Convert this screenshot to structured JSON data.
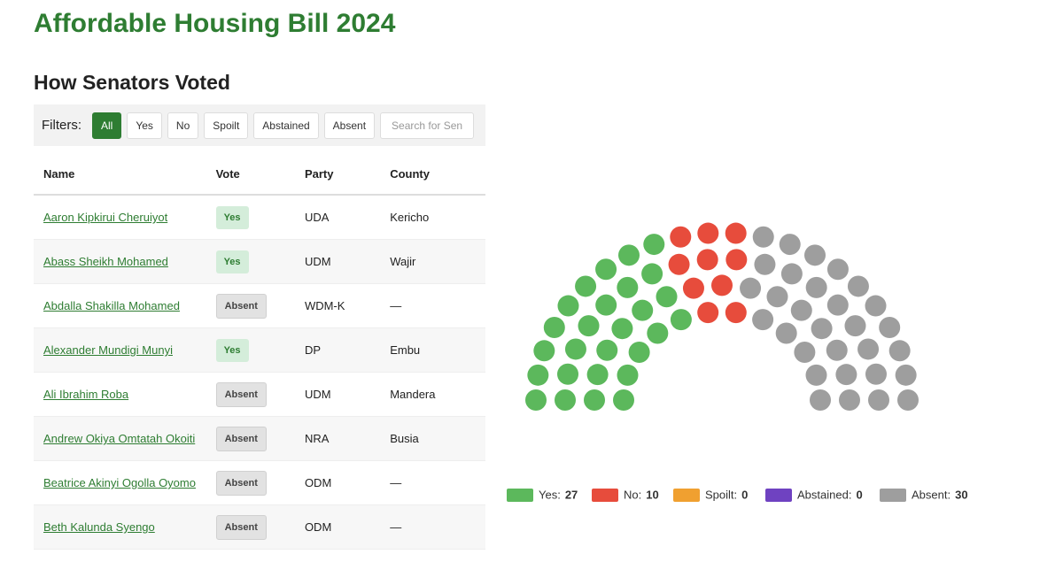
{
  "header": {
    "title": "Affordable Housing Bill 2024"
  },
  "section": {
    "title": "How Senators Voted"
  },
  "filters": {
    "label": "Filters:",
    "buttons": [
      "All",
      "Yes",
      "No",
      "Spoilt",
      "Abstained",
      "Absent"
    ],
    "search_placeholder": "Search for Sen"
  },
  "table": {
    "columns": [
      "Name",
      "Vote",
      "Party",
      "County"
    ],
    "rows": [
      [
        "Aaron Kipkirui Cheruiyot",
        "Yes",
        "UDA",
        "Kericho"
      ],
      [
        "Abass Sheikh Mohamed",
        "Yes",
        "UDM",
        "Wajir"
      ],
      [
        "Abdalla Shakilla Mohamed",
        "Absent",
        "WDM-K",
        "—"
      ],
      [
        "Alexander Mundigi Munyi",
        "Yes",
        "DP",
        "Embu"
      ],
      [
        "Ali Ibrahim Roba",
        "Absent",
        "UDM",
        "Mandera"
      ],
      [
        "Andrew Okiya Omtatah Okoiti",
        "Absent",
        "NRA",
        "Busia"
      ],
      [
        "Beatrice Akinyi Ogolla Oyomo",
        "Absent",
        "ODM",
        "—"
      ],
      [
        "Beth Kalunda Syengo",
        "Absent",
        "ODM",
        "—"
      ]
    ]
  },
  "chart_data": {
    "type": "parliament",
    "categories": [
      "Yes:",
      "No:",
      "Spoilt:",
      "Abstained:",
      "Absent:"
    ],
    "values": [
      27,
      10,
      0,
      0,
      30
    ],
    "colors": [
      "#5cb85c",
      "#e74c3c",
      "#f0a030",
      "#6f42c1",
      "#9e9e9e"
    ]
  }
}
